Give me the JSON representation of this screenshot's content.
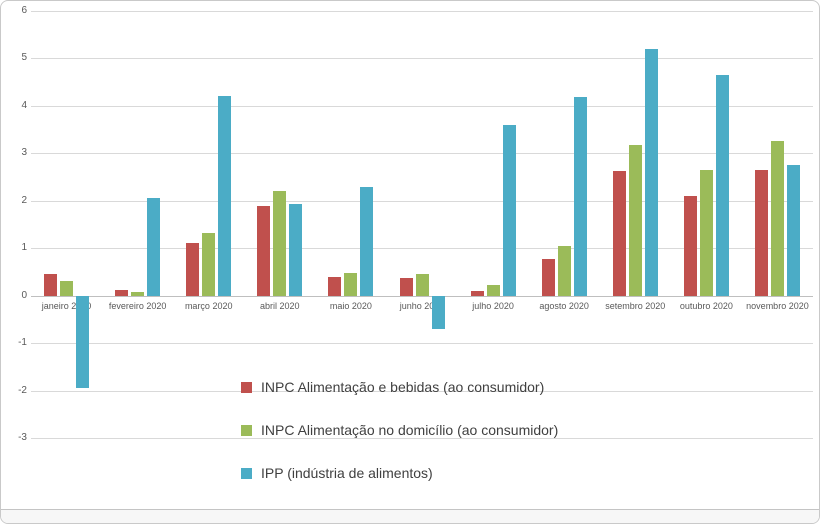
{
  "chart_data": {
    "type": "bar",
    "title": "",
    "xlabel": "",
    "ylabel": "",
    "categories": [
      "janeiro 2020",
      "fevereiro 2020",
      "março 2020",
      "abril 2020",
      "maio 2020",
      "junho 2020",
      "julho 2020",
      "agosto 2020",
      "setembro 2020",
      "outubro 2020",
      "novembro 2020"
    ],
    "series": [
      {
        "name": "INPC Alimentação e bebidas (ao consumidor)",
        "color": "#c0504d",
        "values": [
          0.45,
          0.12,
          1.1,
          1.9,
          0.4,
          0.37,
          0.1,
          0.78,
          2.62,
          2.1,
          2.65
        ]
      },
      {
        "name": "INPC Alimentação no domicílio (ao consumidor)",
        "color": "#9bbb59",
        "values": [
          0.3,
          0.07,
          1.33,
          2.2,
          0.48,
          0.45,
          0.22,
          1.05,
          3.18,
          2.65,
          3.25
        ]
      },
      {
        "name": "IPP (indústria de alimentos)",
        "color": "#4bacc6",
        "values": [
          -1.95,
          2.05,
          4.2,
          1.93,
          2.3,
          -0.7,
          3.6,
          4.18,
          5.2,
          4.65,
          2.75
        ]
      }
    ],
    "ylim": [
      -3,
      6
    ],
    "yticks": [
      -3,
      -2,
      -1,
      0,
      1,
      2,
      3,
      4,
      5,
      6
    ],
    "grid": true,
    "legend_position": "bottom-center"
  }
}
